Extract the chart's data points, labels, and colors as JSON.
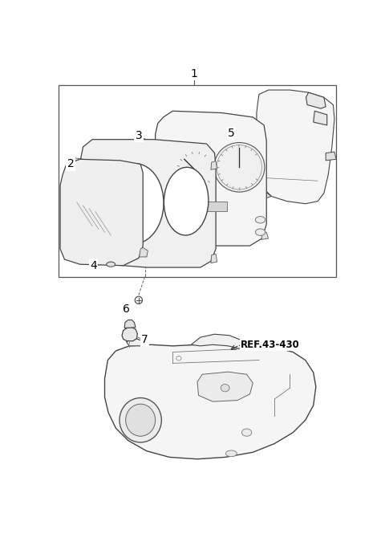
{
  "bg_color": "#ffffff",
  "line_color": "#444444",
  "fill_color": "#f8f8f8",
  "label_color": "#000000"
}
